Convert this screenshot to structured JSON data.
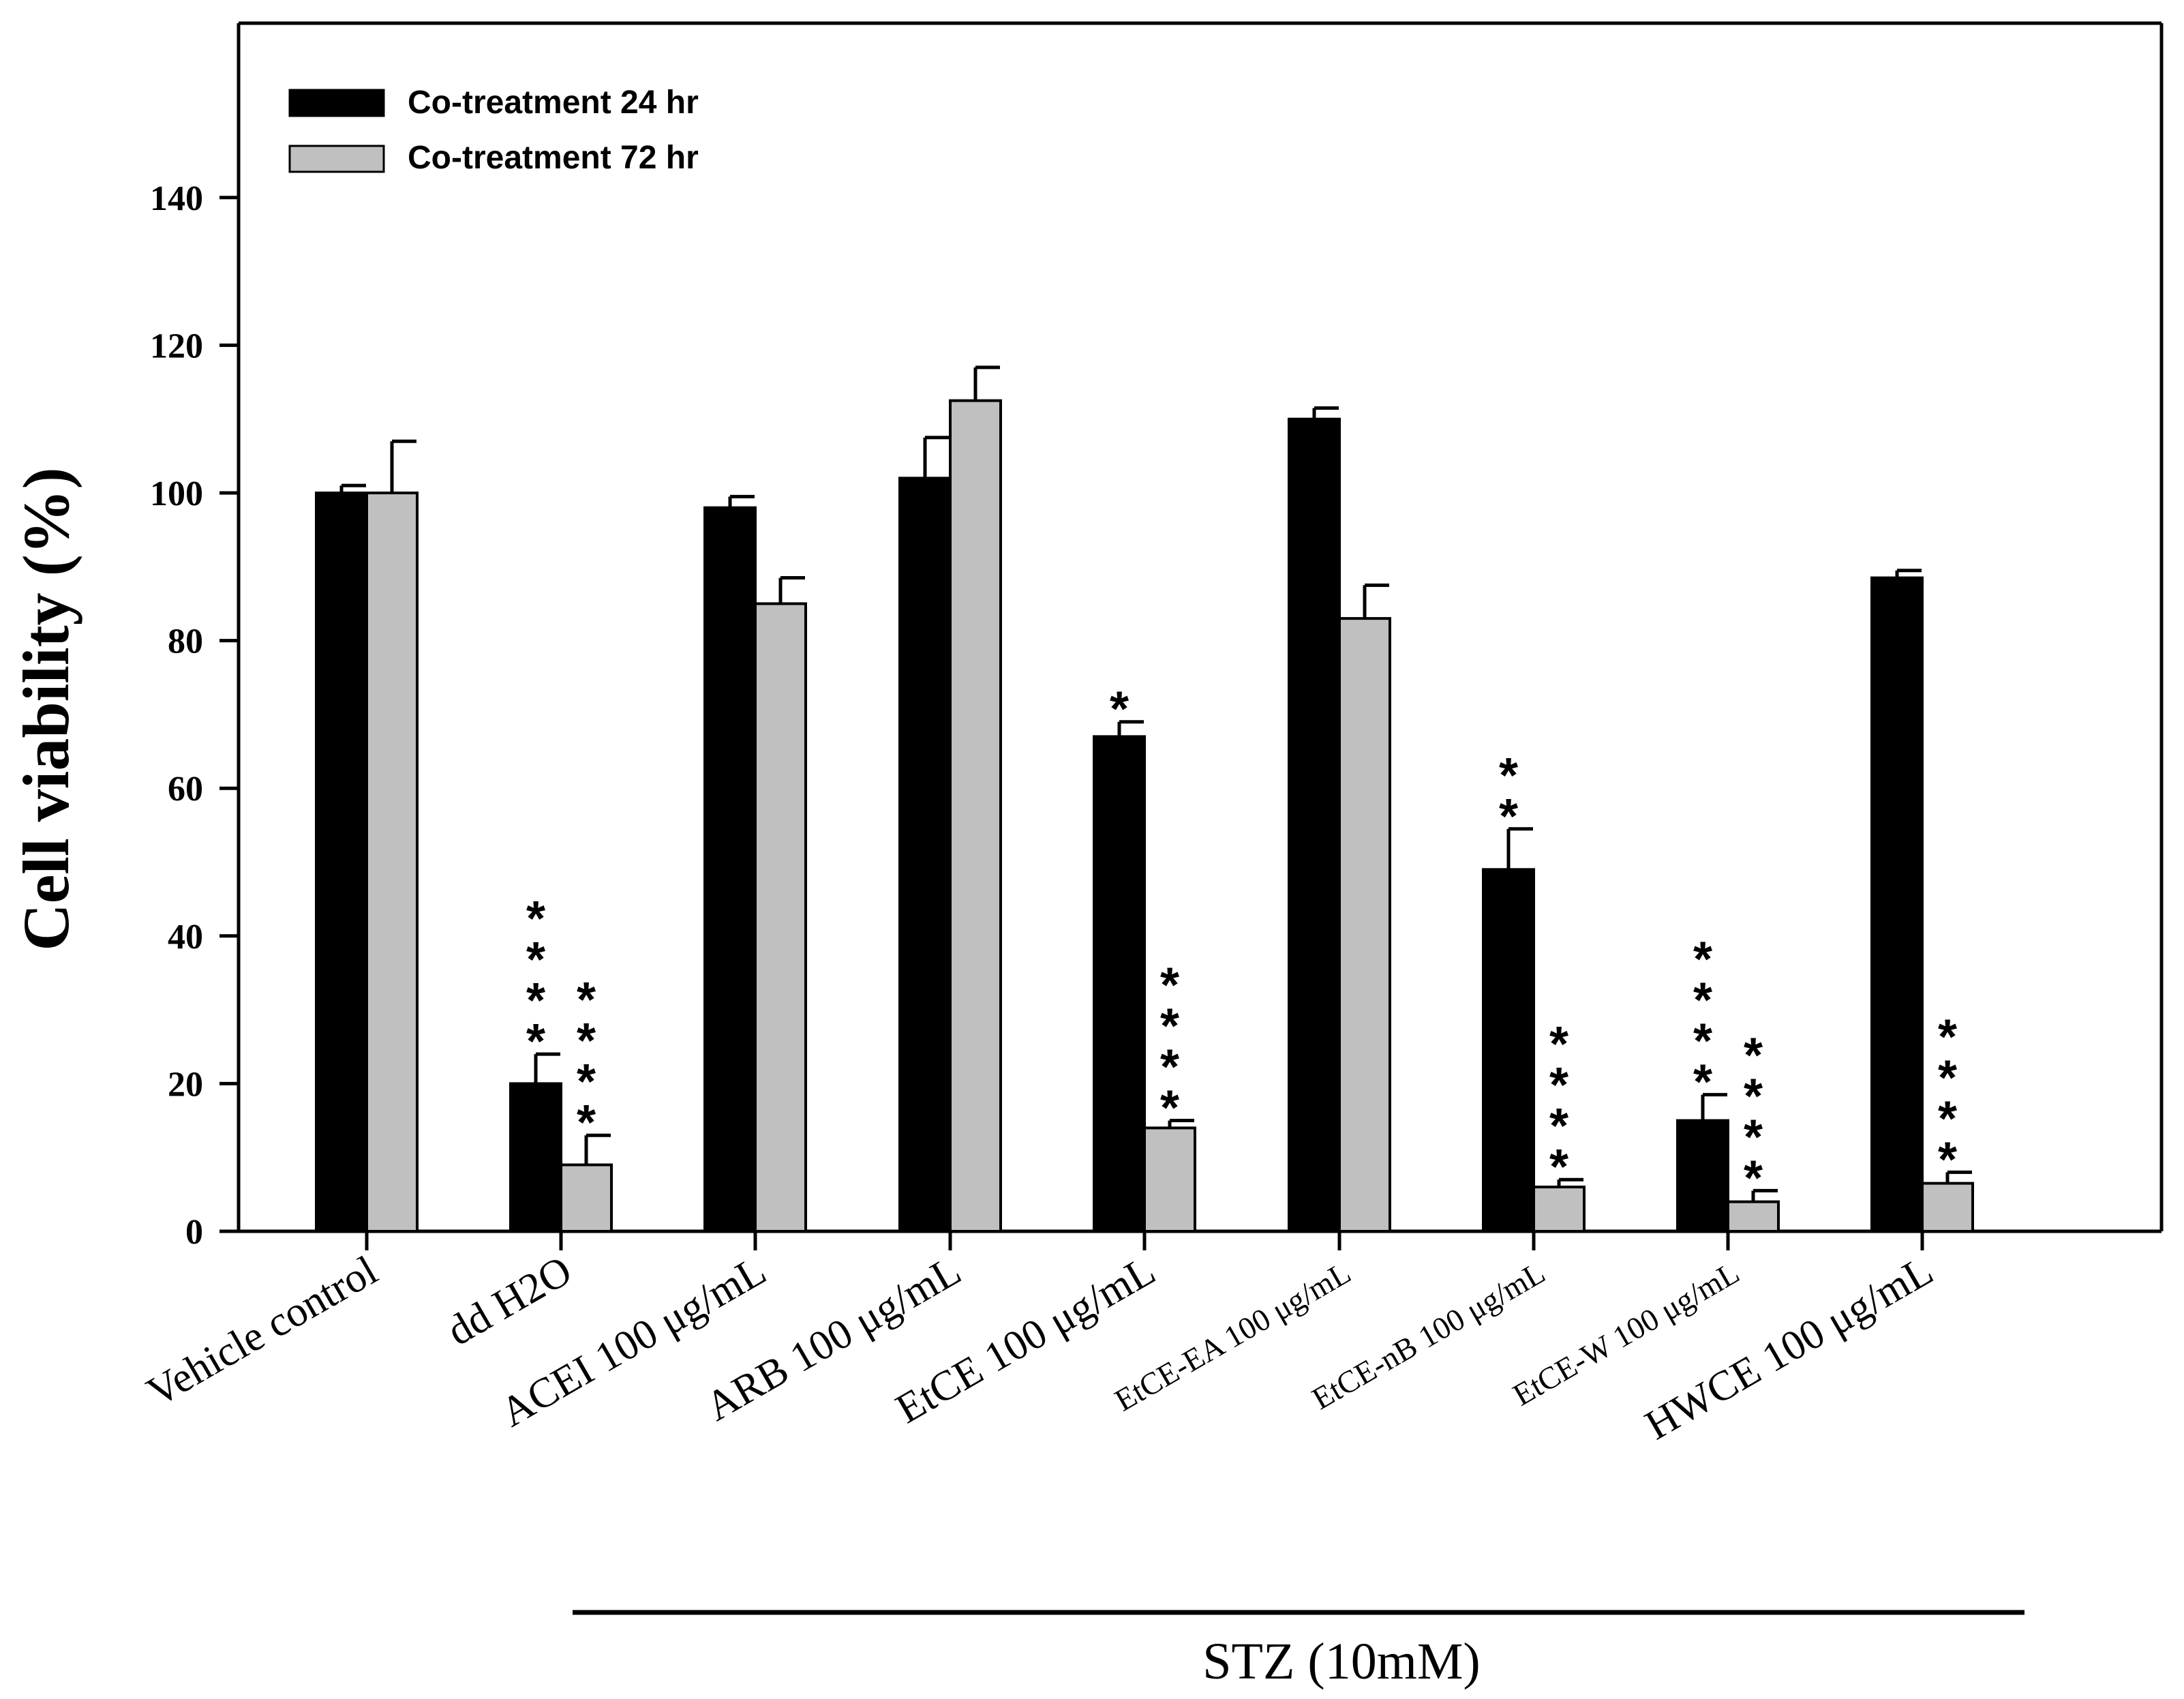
{
  "chart_data": {
    "type": "bar",
    "title": "",
    "xlabel": "",
    "ylabel": "Cell viability (%)",
    "ylim": [
      0,
      160
    ],
    "yticks": [
      0,
      20,
      40,
      60,
      80,
      100,
      120,
      140
    ],
    "grid": false,
    "legend_position": "top-left",
    "categories": [
      "Vehicle control",
      "dd H2O",
      "ACEI 100 μg/mL",
      "ARB 100 μg/mL",
      "EtCE 100 μg/mL",
      "EtCE-EA 100 μg/mL",
      "EtCE-nB 100 μg/mL",
      "EtCE-W 100 μg/mL",
      "HWCE 100 μg/mL"
    ],
    "series": [
      {
        "name": "Co-treatment 24 hr",
        "color": "#000000",
        "values": [
          100,
          20,
          98,
          102,
          67,
          110,
          49,
          15,
          88.5
        ],
        "errors": [
          1,
          4,
          1.5,
          5.5,
          2,
          1.5,
          5.5,
          3.5,
          1
        ],
        "significance": [
          "",
          "****",
          "",
          "",
          "*",
          "",
          "**",
          "****",
          ""
        ]
      },
      {
        "name": "Co-treatment 72 hr",
        "color": "#c0c0c0",
        "values": [
          100,
          9,
          85,
          112.5,
          14,
          83,
          6,
          4,
          6.5
        ],
        "errors": [
          7,
          4,
          3.5,
          4.5,
          1,
          4.5,
          1,
          1.5,
          1.5
        ],
        "significance": [
          "",
          "****",
          "",
          "",
          "****",
          "",
          "****",
          "****",
          "****"
        ]
      }
    ],
    "group_annotation": "STZ (10mM)"
  }
}
